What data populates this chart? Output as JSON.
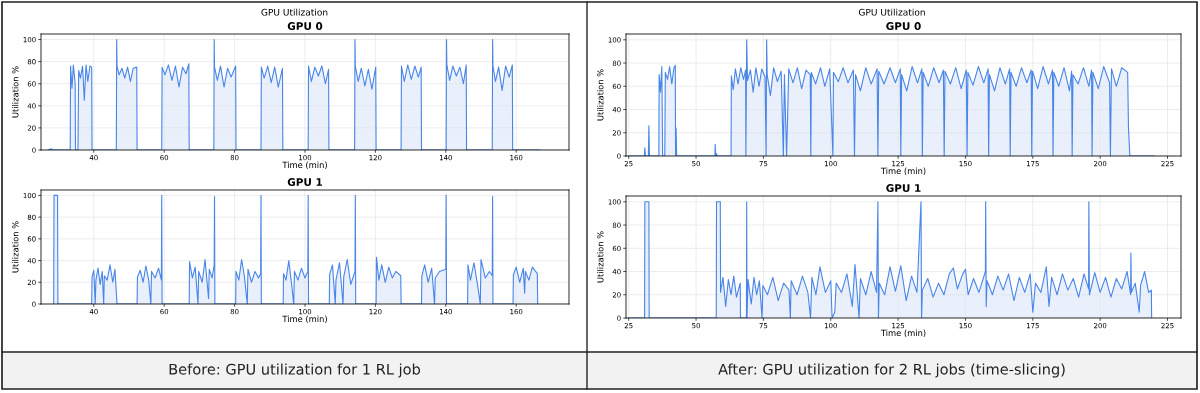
{
  "chart_data": [
    {
      "type": "area",
      "title": "GPU Utilization",
      "subtitle": "GPU 0",
      "xlabel": "Time (min)",
      "ylabel": "Utilization %",
      "xlim": [
        25,
        175
      ],
      "xticks": [
        40,
        60,
        80,
        100,
        120,
        140,
        160
      ],
      "ylim": [
        0,
        105
      ],
      "yticks": [
        0,
        20,
        40,
        60,
        80,
        100
      ],
      "grid": true,
      "series": [
        {
          "color": "#4a86e8",
          "x": [
            27,
            28,
            28.3,
            33.3,
            33.4,
            33.8,
            34.2,
            34.7,
            34.8,
            35.5,
            35.7,
            36.2,
            36.8,
            37.3,
            37.8,
            38.3,
            38.9,
            39.4,
            39.5,
            46.4,
            46.5,
            46.6,
            47.2,
            48.0,
            48.8,
            49.6,
            50.4,
            51.2,
            52.2,
            52.3,
            59.3,
            59.4,
            60.2,
            61.2,
            62.2,
            63.2,
            64.2,
            65.2,
            66.2,
            67.0,
            67.1,
            74.1,
            74.2,
            74.3,
            75.1,
            76.0,
            77.0,
            78.0,
            79.0,
            80.3,
            80.4,
            87.5,
            87.6,
            88.4,
            89.4,
            90.4,
            91.4,
            92.4,
            93.6,
            93.7,
            100.9,
            101.0,
            101.8,
            102.8,
            103.8,
            104.8,
            105.8,
            106.7,
            106.8,
            114.1,
            114.2,
            114.3,
            115.1,
            116.0,
            117.0,
            118.0,
            119.0,
            120.1,
            120.2,
            127.3,
            127.4,
            128.2,
            129.2,
            130.2,
            131.2,
            132.2,
            133.0,
            133.1,
            140.1,
            140.2,
            140.3,
            141.1,
            142.0,
            143.0,
            144.0,
            145.0,
            145.8,
            145.9,
            153.2,
            153.3,
            153.4,
            154.1,
            155.0,
            156.0,
            157.0,
            158.0,
            158.9,
            159.0,
            166.7
          ],
          "values": [
            0,
            1,
            0,
            0,
            76,
            56,
            77,
            60,
            0,
            0,
            72,
            65,
            76,
            45,
            77,
            62,
            76,
            75,
            0,
            0,
            100,
            76,
            68,
            74,
            65,
            75,
            62,
            74,
            75,
            0,
            0,
            75,
            68,
            77,
            63,
            76,
            57,
            75,
            69,
            78,
            0,
            0,
            100,
            75,
            63,
            76,
            57,
            74,
            66,
            76,
            0,
            0,
            75,
            65,
            76,
            61,
            75,
            57,
            74,
            0,
            0,
            76,
            62,
            75,
            67,
            76,
            60,
            73,
            0,
            0,
            100,
            76,
            62,
            74,
            58,
            73,
            55,
            75,
            0,
            0,
            76,
            62,
            77,
            64,
            76,
            66,
            75,
            0,
            0,
            100,
            77,
            63,
            76,
            67,
            75,
            60,
            77,
            0,
            0,
            100,
            76,
            62,
            75,
            54,
            76,
            66,
            77,
            0,
            0
          ]
        }
      ]
    },
    {
      "type": "area",
      "title": "GPU 1",
      "xlabel": "Time (min)",
      "ylabel": "Utilization %",
      "xlim": [
        25,
        175
      ],
      "xticks": [
        40,
        60,
        80,
        100,
        120,
        140,
        160
      ],
      "ylim": [
        0,
        105
      ],
      "yticks": [
        0,
        20,
        40,
        60,
        80,
        100
      ],
      "grid": true,
      "annotations": [
        "Before: GPU utilization for 1 RL job"
      ],
      "series": [
        {
          "color": "#4a86e8",
          "x": [
            28.6,
            28.7,
            29.7,
            29.8,
            39.4,
            39.5,
            40.0,
            40.4,
            40.6,
            41.2,
            41.8,
            42.4,
            42.8,
            43.0,
            43.8,
            44.6,
            45.4,
            46.0,
            46.6,
            52.3,
            52.4,
            53.2,
            54.0,
            54.8,
            55.6,
            56.2,
            56.4,
            57.4,
            58.4,
            59.2,
            59.3,
            59.4,
            67.1,
            67.2,
            68.0,
            68.8,
            69.6,
            69.8,
            70.8,
            71.6,
            72.6,
            72.8,
            73.6,
            74.2,
            74.3,
            74.4,
            80.3,
            80.4,
            81.2,
            82.0,
            82.8,
            83.6,
            83.8,
            84.8,
            85.8,
            86.8,
            87.4,
            87.5,
            87.6,
            93.8,
            93.9,
            94.6,
            95.4,
            96.2,
            96.8,
            97.0,
            98.0,
            99.0,
            100.0,
            100.8,
            100.9,
            101.0,
            106.9,
            107.0,
            107.8,
            108.6,
            108.8,
            109.8,
            110.8,
            111.0,
            112.0,
            113.0,
            114.2,
            114.3,
            114.4,
            120.2,
            120.3,
            121.0,
            121.8,
            122.8,
            123.8,
            124.8,
            125.8,
            127.2,
            127.3,
            133.1,
            133.2,
            134.0,
            135.0,
            136.0,
            136.8,
            137.0,
            138.2,
            140.0,
            140.1,
            140.2,
            146.2,
            146.3,
            147.0,
            148.0,
            149.0,
            149.8,
            150.0,
            151.2,
            152.4,
            153.2,
            153.3,
            153.4,
            159.1,
            159.2,
            160.0,
            161.0,
            162.0,
            162.4,
            162.6,
            163.6,
            164.6,
            166.0,
            166.1
          ],
          "values": [
            0,
            100,
            100,
            0,
            0,
            25,
            31,
            0,
            22,
            33,
            18,
            30,
            0,
            26,
            22,
            36,
            20,
            32,
            0,
            0,
            25,
            31,
            20,
            35,
            22,
            0,
            30,
            24,
            33,
            22,
            100,
            0,
            0,
            39,
            24,
            34,
            0,
            30,
            20,
            41,
            5,
            32,
            24,
            36,
            99,
            0,
            0,
            30,
            22,
            41,
            25,
            0,
            32,
            20,
            30,
            24,
            28,
            100,
            0,
            0,
            28,
            22,
            40,
            18,
            0,
            30,
            22,
            33,
            24,
            30,
            100,
            0,
            0,
            27,
            36,
            0,
            22,
            38,
            0,
            25,
            41,
            18,
            30,
            100,
            0,
            0,
            43,
            22,
            36,
            20,
            34,
            24,
            30,
            26,
            0,
            0,
            26,
            36,
            20,
            33,
            0,
            24,
            30,
            32,
            100,
            0,
            0,
            36,
            22,
            38,
            18,
            0,
            41,
            24,
            30,
            26,
            99,
            0,
            0,
            27,
            34,
            20,
            33,
            10,
            30,
            22,
            34,
            28,
            0
          ]
        }
      ]
    },
    {
      "type": "area",
      "title": "GPU Utilization",
      "subtitle": "GPU 0",
      "xlabel": "Time (min)",
      "ylabel": "Utilization %",
      "xlim": [
        24,
        230
      ],
      "xticks": [
        25,
        50,
        75,
        100,
        125,
        150,
        175,
        200,
        225
      ],
      "ylim": [
        0,
        105
      ],
      "yticks": [
        0,
        20,
        40,
        60,
        80,
        100
      ],
      "grid": true,
      "series": [
        {
          "color": "#4a86e8",
          "x": [
            25,
            30.8,
            31,
            31.2,
            32.3,
            32.5,
            32.7,
            36.2,
            36.3,
            36.8,
            37.3,
            37.6,
            38.4,
            38.6,
            39.4,
            40.2,
            41.0,
            41.8,
            42.3,
            42.4,
            42.6,
            42.8,
            57,
            57.1,
            57.3,
            57.6,
            57.8,
            63,
            63.1,
            63.8,
            64.6,
            65.6,
            66.6,
            67.6,
            68.4,
            68.5,
            68.8,
            69.1,
            70.2,
            71.2,
            72.2,
            73.4,
            74.4,
            75.6,
            76,
            76.2,
            76.4,
            77.6,
            78.8,
            80.2,
            81.6,
            82.4,
            82.8,
            83.6,
            84.0,
            84.4,
            86.0,
            87.6,
            89.2,
            90.8,
            92.4,
            92.6,
            92.8,
            94.4,
            96.2,
            97.8,
            99.6,
            100.8,
            101.0,
            102.8,
            104.6,
            106.4,
            108.4,
            108.8,
            109.2,
            111.0,
            113.0,
            115.0,
            117.2,
            117.5,
            117.8,
            119.8,
            122.0,
            124.0,
            125.8,
            126.0,
            126.3,
            128.2,
            130.2,
            132.2,
            133.8,
            134.0,
            134.3,
            136.2,
            138.2,
            140.2,
            141.8,
            142.1,
            142.4,
            144.4,
            146.4,
            148.4,
            150.3,
            150.6,
            150.9,
            152.8,
            154.8,
            156.8,
            158.4,
            158.6,
            158.9,
            160.8,
            162.8,
            164.8,
            166.4,
            166.6,
            166.9,
            168.8,
            170.8,
            172.8,
            174.4,
            174.6,
            174.9,
            176.8,
            178.8,
            180.8,
            182.3,
            182.5,
            182.8,
            184.6,
            186.6,
            188.6,
            189.4,
            189.6,
            189.9,
            191.8,
            193.8,
            195.8,
            196.8,
            197.0,
            197.3,
            199.3,
            201.3,
            203.5,
            203.8,
            204.2,
            206.0,
            208.0,
            210.2,
            210.5,
            211,
            220
          ],
          "values": [
            0,
            0,
            7,
            0,
            0,
            26,
            0,
            0,
            70,
            55,
            77,
            0,
            0,
            72,
            66,
            77,
            62,
            76,
            78,
            0,
            24,
            0,
            0,
            10,
            0,
            2,
            0,
            0,
            69,
            57,
            75,
            62,
            76,
            66,
            74,
            0,
            100,
            65,
            74,
            55,
            76,
            60,
            75,
            68,
            0,
            100,
            70,
            52,
            76,
            64,
            73,
            0,
            70,
            0,
            35,
            75,
            63,
            76,
            58,
            74,
            70,
            0,
            72,
            62,
            76,
            60,
            75,
            0,
            72,
            64,
            76,
            63,
            74,
            0,
            70,
            56,
            76,
            62,
            75,
            0,
            73,
            62,
            76,
            63,
            75,
            0,
            70,
            56,
            77,
            63,
            75,
            0,
            72,
            60,
            76,
            63,
            74,
            0,
            73,
            62,
            76,
            58,
            74,
            0,
            72,
            61,
            77,
            63,
            75,
            0,
            70,
            56,
            76,
            62,
            75,
            0,
            72,
            60,
            76,
            63,
            74,
            0,
            73,
            58,
            77,
            62,
            74,
            0,
            72,
            60,
            76,
            56,
            73,
            0,
            70,
            62,
            76,
            60,
            74,
            0,
            72,
            58,
            77,
            63,
            0,
            75,
            60,
            76,
            72,
            25,
            0,
            0
          ]
        }
      ]
    },
    {
      "type": "area",
      "title": "GPU 1",
      "xlabel": "Time (min)",
      "ylabel": "Utilization %",
      "xlim": [
        24,
        230
      ],
      "xticks": [
        25,
        50,
        75,
        100,
        125,
        150,
        175,
        200,
        225
      ],
      "ylim": [
        0,
        105
      ],
      "yticks": [
        0,
        20,
        40,
        60,
        80,
        100
      ],
      "grid": true,
      "annotations": [
        "After: GPU utilization for 2 RL jobs (time-slicing)"
      ],
      "series": [
        {
          "color": "#4a86e8",
          "x": [
            25,
            30.9,
            31,
            32.5,
            32.6,
            57.5,
            57.6,
            59,
            59.1,
            60.0,
            61.0,
            62.0,
            63.0,
            64.0,
            65.0,
            66.4,
            66.5,
            68.7,
            68.8,
            68.9,
            69.3,
            70.5,
            71.5,
            72.5,
            73.5,
            74.5,
            74.8,
            76.5,
            78.5,
            80.5,
            82.5,
            84.5,
            85.0,
            85.3,
            87.5,
            89.5,
            91.5,
            92.5,
            93.0,
            94.5,
            96.0,
            98.0,
            100.0,
            100.5,
            101.5,
            102.0,
            104.0,
            106.0,
            108.0,
            109.0,
            110.5,
            111.0,
            113.0,
            115.0,
            117.0,
            117.5,
            117.7,
            118.0,
            120.0,
            122.0,
            124.0,
            126.0,
            128.0,
            130.0,
            132.0,
            133.5,
            133.7,
            134.0,
            136.0,
            138.0,
            140.0,
            142.0,
            144.0,
            145.5,
            147.0,
            149.0,
            150.0,
            151.0,
            153.0,
            155.0,
            157.4,
            157.5,
            157.7,
            158.0,
            160.0,
            162.0,
            164.0,
            166.0,
            168.0,
            170.0,
            172.0,
            174.0,
            175.0,
            176.0,
            178.0,
            180.0,
            181.0,
            182.0,
            184.0,
            186.0,
            188.0,
            190.0,
            192.0,
            194.0,
            195.7,
            195.8,
            196.0,
            198.0,
            200.0,
            202.0,
            204.0,
            206.0,
            208.0,
            210.0,
            211.3,
            211.4,
            211.6,
            213.0,
            214.5,
            215.0,
            216.5,
            218.0,
            219.0,
            219.1
          ],
          "values": [
            0,
            0,
            100,
            100,
            0,
            0,
            100,
            100,
            22,
            35,
            10,
            33,
            20,
            36,
            18,
            30,
            0,
            0,
            100,
            0,
            33,
            12,
            35,
            20,
            32,
            0,
            28,
            20,
            35,
            15,
            30,
            24,
            0,
            32,
            20,
            36,
            22,
            0,
            35,
            20,
            44,
            22,
            32,
            0,
            5,
            30,
            22,
            38,
            10,
            46,
            0,
            34,
            20,
            40,
            22,
            100,
            0,
            30,
            20,
            44,
            23,
            45,
            15,
            36,
            22,
            100,
            0,
            24,
            34,
            18,
            30,
            20,
            38,
            43,
            25,
            38,
            42,
            20,
            34,
            22,
            40,
            100,
            10,
            32,
            20,
            36,
            24,
            38,
            15,
            35,
            22,
            38,
            5,
            30,
            22,
            44,
            10,
            35,
            20,
            38,
            24,
            34,
            18,
            38,
            25,
            100,
            20,
            39,
            22,
            35,
            18,
            34,
            25,
            40,
            20,
            56,
            22,
            30,
            5,
            28,
            40,
            22,
            24,
            0
          ]
        }
      ]
    }
  ]
}
